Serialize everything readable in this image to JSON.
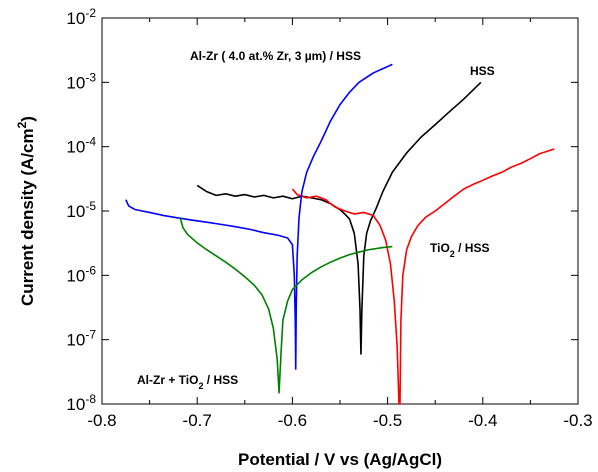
{
  "chart_data": {
    "type": "line",
    "xlabel": "Potential / V vs (Ag/AgCl)",
    "ylabel": {
      "main": "Current density (A/cm",
      "sup": "2",
      "tail": ")"
    },
    "xlim": [
      -0.8,
      -0.3
    ],
    "ylim": [
      1e-08,
      0.01
    ],
    "yscale": "log",
    "grid": false,
    "x_ticks": [
      {
        "value": -0.8,
        "label": "-0.8"
      },
      {
        "value": -0.7,
        "label": "-0.7"
      },
      {
        "value": -0.6,
        "label": "-0.6"
      },
      {
        "value": -0.5,
        "label": "-0.5"
      },
      {
        "value": -0.4,
        "label": "-0.4"
      },
      {
        "value": -0.3,
        "label": "-0.3"
      }
    ],
    "y_ticks": [
      {
        "value": 1e-08,
        "base": "10",
        "exp": "-8"
      },
      {
        "value": 1e-07,
        "base": "10",
        "exp": "-7"
      },
      {
        "value": 1e-06,
        "base": "10",
        "exp": "-6"
      },
      {
        "value": 1e-05,
        "base": "10",
        "exp": "-5"
      },
      {
        "value": 0.0001,
        "base": "10",
        "exp": "-4"
      },
      {
        "value": 0.001,
        "base": "10",
        "exp": "-3"
      },
      {
        "value": 0.01,
        "base": "10",
        "exp": "-2"
      }
    ],
    "series": [
      {
        "label": "HSS",
        "color": "#000000",
        "points": [
          [
            -0.7,
            2.5e-05
          ],
          [
            -0.69,
            2e-05
          ],
          [
            -0.68,
            1.75e-05
          ],
          [
            -0.67,
            1.85e-05
          ],
          [
            -0.66,
            1.7e-05
          ],
          [
            -0.65,
            1.8e-05
          ],
          [
            -0.64,
            1.65e-05
          ],
          [
            -0.63,
            1.75e-05
          ],
          [
            -0.62,
            1.6e-05
          ],
          [
            -0.61,
            1.7e-05
          ],
          [
            -0.6,
            1.55e-05
          ],
          [
            -0.59,
            1.7e-05
          ],
          [
            -0.58,
            1.6e-05
          ],
          [
            -0.57,
            1.5e-05
          ],
          [
            -0.56,
            1.3e-05
          ],
          [
            -0.55,
            1.05e-05
          ],
          [
            -0.545,
            9e-06
          ],
          [
            -0.54,
            7.5e-06
          ],
          [
            -0.535,
            4.5e-06
          ],
          [
            -0.531,
            1.5e-06
          ],
          [
            -0.529,
            3e-07
          ],
          [
            -0.528,
            6e-08
          ],
          [
            -0.527,
            3e-07
          ],
          [
            -0.525,
            2e-06
          ],
          [
            -0.522,
            4.5e-06
          ],
          [
            -0.518,
            7e-06
          ],
          [
            -0.512,
            1.1e-05
          ],
          [
            -0.505,
            2e-05
          ],
          [
            -0.495,
            4e-05
          ],
          [
            -0.48,
            8e-05
          ],
          [
            -0.465,
            0.00014
          ],
          [
            -0.45,
            0.00022
          ],
          [
            -0.435,
            0.00035
          ],
          [
            -0.42,
            0.00055
          ],
          [
            -0.402,
            0.001
          ]
        ]
      },
      {
        "label": "TiO2 / HSS",
        "color": "#ff0000",
        "points": [
          [
            -0.6,
            2.2e-05
          ],
          [
            -0.595,
            1.8e-05
          ],
          [
            -0.585,
            1.6e-05
          ],
          [
            -0.575,
            1.7e-05
          ],
          [
            -0.565,
            1.5e-05
          ],
          [
            -0.56,
            1.3e-05
          ],
          [
            -0.555,
            1.15e-05
          ],
          [
            -0.545,
            1e-05
          ],
          [
            -0.535,
            9e-06
          ],
          [
            -0.525,
            9.5e-06
          ],
          [
            -0.515,
            8.5e-06
          ],
          [
            -0.508,
            6e-06
          ],
          [
            -0.502,
            3.5e-06
          ],
          [
            -0.497,
            1.5e-06
          ],
          [
            -0.493,
            4e-07
          ],
          [
            -0.49,
            8e-08
          ],
          [
            -0.488,
            1e-08
          ],
          [
            -0.487,
            1e-08
          ],
          [
            -0.486,
            2e-07
          ],
          [
            -0.484,
            1e-06
          ],
          [
            -0.48,
            2.5e-06
          ],
          [
            -0.475,
            4e-06
          ],
          [
            -0.468,
            6e-06
          ],
          [
            -0.46,
            8e-06
          ],
          [
            -0.45,
            1e-05
          ],
          [
            -0.44,
            1.3e-05
          ],
          [
            -0.43,
            1.7e-05
          ],
          [
            -0.42,
            2.2e-05
          ],
          [
            -0.41,
            2.6e-05
          ],
          [
            -0.4,
            3e-05
          ],
          [
            -0.39,
            3.5e-05
          ],
          [
            -0.38,
            4e-05
          ],
          [
            -0.37,
            4.8e-05
          ],
          [
            -0.36,
            5.5e-05
          ],
          [
            -0.35,
            6.5e-05
          ],
          [
            -0.34,
            7.8e-05
          ],
          [
            -0.325,
            9.2e-05
          ]
        ]
      },
      {
        "label": "Al-Zr ( 4.0 at.% Zr, 3 µm) / HSS",
        "color": "#0000ff",
        "points": [
          [
            -0.775,
            1.5e-05
          ],
          [
            -0.772,
            1.2e-05
          ],
          [
            -0.765,
            1.05e-05
          ],
          [
            -0.75,
            9.5e-06
          ],
          [
            -0.735,
            8.5e-06
          ],
          [
            -0.72,
            7.8e-06
          ],
          [
            -0.705,
            7.2e-06
          ],
          [
            -0.69,
            6.7e-06
          ],
          [
            -0.675,
            6.2e-06
          ],
          [
            -0.66,
            5.7e-06
          ],
          [
            -0.645,
            5.2e-06
          ],
          [
            -0.63,
            4.6e-06
          ],
          [
            -0.615,
            4.2e-06
          ],
          [
            -0.605,
            3.8e-06
          ],
          [
            -0.6,
            3e-06
          ],
          [
            -0.598,
            1e-06
          ],
          [
            -0.597,
            2e-07
          ],
          [
            -0.5965,
            3.5e-08
          ],
          [
            -0.596,
            3e-07
          ],
          [
            -0.595,
            2e-06
          ],
          [
            -0.593,
            8e-06
          ],
          [
            -0.59,
            2e-05
          ],
          [
            -0.585,
            4e-05
          ],
          [
            -0.578,
            7e-05
          ],
          [
            -0.57,
            0.00012
          ],
          [
            -0.56,
            0.00025
          ],
          [
            -0.55,
            0.00045
          ],
          [
            -0.54,
            0.0007
          ],
          [
            -0.53,
            0.001
          ],
          [
            -0.515,
            0.0014
          ],
          [
            -0.495,
            0.0019
          ]
        ]
      },
      {
        "label": "Al-Zr + TiO2 / HSS",
        "color": "#008000",
        "points": [
          [
            -0.718,
            8e-06
          ],
          [
            -0.715,
            5.5e-06
          ],
          [
            -0.71,
            4.3e-06
          ],
          [
            -0.7,
            3.2e-06
          ],
          [
            -0.69,
            2.5e-06
          ],
          [
            -0.68,
            2e-06
          ],
          [
            -0.67,
            1.6e-06
          ],
          [
            -0.66,
            1.25e-06
          ],
          [
            -0.65,
            9.5e-07
          ],
          [
            -0.64,
            7e-07
          ],
          [
            -0.632,
            5e-07
          ],
          [
            -0.625,
            3e-07
          ],
          [
            -0.62,
            1.5e-07
          ],
          [
            -0.616,
            5e-08
          ],
          [
            -0.614,
            1.5e-08
          ],
          [
            -0.612,
            6e-08
          ],
          [
            -0.61,
            2e-07
          ],
          [
            -0.605,
            4e-07
          ],
          [
            -0.6,
            6e-07
          ],
          [
            -0.59,
            8.5e-07
          ],
          [
            -0.58,
            1.1e-06
          ],
          [
            -0.57,
            1.35e-06
          ],
          [
            -0.56,
            1.6e-06
          ],
          [
            -0.55,
            1.85e-06
          ],
          [
            -0.54,
            2.1e-06
          ],
          [
            -0.53,
            2.3e-06
          ],
          [
            -0.52,
            2.5e-06
          ],
          [
            -0.505,
            2.7e-06
          ],
          [
            -0.495,
            2.8e-06
          ]
        ]
      }
    ],
    "annotations": [
      {
        "id": "hss",
        "text": "HSS"
      },
      {
        "id": "alzr",
        "text": "Al-Zr ( 4.0 at.% Zr, 3 µm) / HSS"
      },
      {
        "id": "tio2",
        "main": "TiO",
        "sub": "2",
        "tail": " / HSS"
      },
      {
        "id": "alzr-tio2",
        "main": "Al-Zr + TiO",
        "sub": "2",
        "tail": " / HSS"
      }
    ]
  }
}
